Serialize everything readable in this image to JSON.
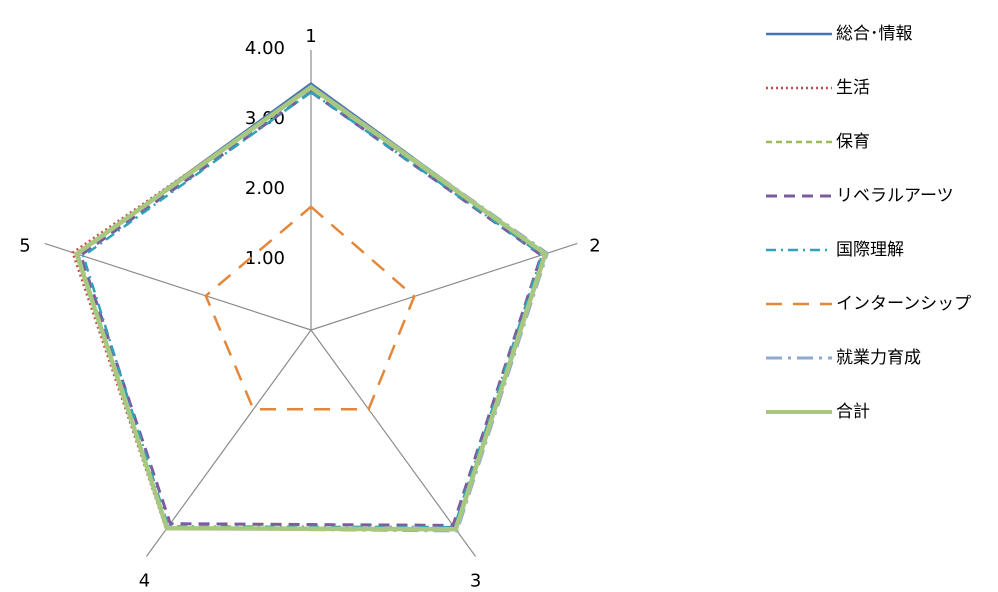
{
  "chart_data": {
    "type": "radar",
    "axes": [
      "1",
      "2",
      "3",
      "4",
      "5"
    ],
    "rlim": [
      0,
      4
    ],
    "tick_labels": [
      "1.00",
      "2.00",
      "3.00",
      "4.00"
    ],
    "tick_values": [
      1,
      2,
      3,
      4
    ],
    "grid": false,
    "legend_position": "right",
    "series": [
      {
        "name": "総合･情報",
        "values": [
          3.52,
          3.52,
          3.52,
          3.5,
          3.52
        ],
        "color": "#4a72b0",
        "dash": "solid",
        "width": 2.5
      },
      {
        "name": "生活",
        "values": [
          3.46,
          3.5,
          3.5,
          3.52,
          3.58
        ],
        "color": "#c0504d",
        "dash": "dotted",
        "width": 2.5
      },
      {
        "name": "保育",
        "values": [
          3.45,
          3.5,
          3.52,
          3.5,
          3.52
        ],
        "color": "#9bbb59",
        "dash": "shortdash",
        "width": 2.5
      },
      {
        "name": "リベラルアーツ",
        "values": [
          3.4,
          3.46,
          3.45,
          3.42,
          3.46
        ],
        "color": "#7a5c9e",
        "dash": "dash",
        "width": 3
      },
      {
        "name": "国際理解",
        "values": [
          3.4,
          3.47,
          3.48,
          3.47,
          3.42
        ],
        "color": "#31a1b8",
        "dash": "dashdot",
        "width": 2.5
      },
      {
        "name": "インターンシップ",
        "values": [
          1.76,
          1.55,
          1.4,
          1.4,
          1.58
        ],
        "color": "#e3873b",
        "dash": "longdash",
        "width": 2.5
      },
      {
        "name": "就業力育成",
        "values": [
          3.48,
          3.55,
          3.55,
          3.5,
          3.5
        ],
        "color": "#8eaad3",
        "dash": "longdashdot",
        "width": 3
      },
      {
        "name": "合計",
        "values": [
          3.47,
          3.52,
          3.52,
          3.5,
          3.52
        ],
        "color": "#a8c87f",
        "dash": "solid",
        "width": 4.5
      }
    ]
  }
}
